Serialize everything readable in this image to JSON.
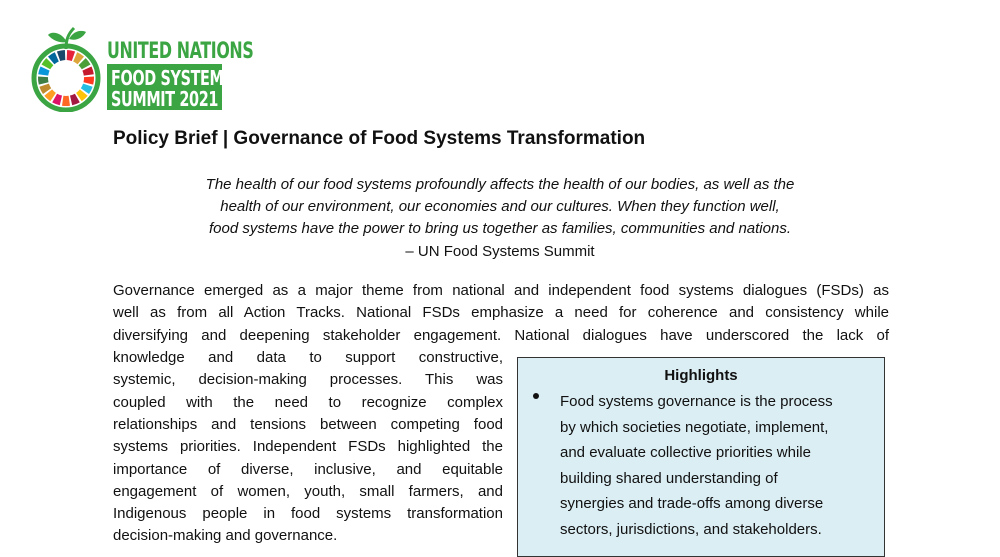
{
  "logo": {
    "line1": "UNITED NATIONS",
    "line2": "FOOD SYSTEMS",
    "line3": "SUMMIT 2021",
    "brand_color": "#3aa542"
  },
  "title": "Policy Brief | Governance of Food Systems Transformation",
  "quote": [
    "The health of our food systems profoundly affects the health of our bodies, as well as the",
    "health of our environment, our economies and our cultures. When they function well,",
    "food systems have the power to bring us together as families, communities and nations.",
    "– UN Food Systems Summit"
  ],
  "body_full": [
    "Governance emerged as a major theme from national and independent food systems dialogues (FSDs) as",
    "well as from all Action Tracks. National FSDs emphasize a need for coherence and consistency while",
    "diversifying and deepening stakeholder engagement. National dialogues have underscored the lack of"
  ],
  "body_narrow": [
    "knowledge and data to support constructive,",
    "systemic, decision-making processes. This was",
    "coupled with the need to recognize complex",
    "relationships and tensions between competing food",
    "systems priorities. Independent FSDs highlighted the",
    "importance of diverse, inclusive, and equitable",
    "engagement of women, youth, small farmers, and",
    "Indigenous people in food systems transformation",
    "decision-making and governance."
  ],
  "highlights": {
    "heading": "Highlights",
    "bullet_lines": [
      "Food systems governance is the process",
      "by which societies negotiate, implement,",
      "and evaluate collective priorities while",
      "building shared understanding of",
      "synergies and trade-offs among diverse",
      "sectors, jurisdictions, and stakeholders."
    ],
    "background": "#dbeef4"
  }
}
